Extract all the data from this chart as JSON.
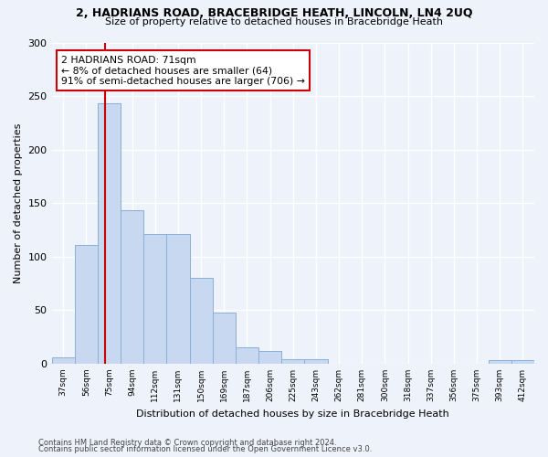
{
  "title1": "2, HADRIANS ROAD, BRACEBRIDGE HEATH, LINCOLN, LN4 2UQ",
  "title2": "Size of property relative to detached houses in Bracebridge Heath",
  "xlabel": "Distribution of detached houses by size in Bracebridge Heath",
  "ylabel": "Number of detached properties",
  "categories": [
    "37sqm",
    "56sqm",
    "75sqm",
    "94sqm",
    "112sqm",
    "131sqm",
    "150sqm",
    "169sqm",
    "187sqm",
    "206sqm",
    "225sqm",
    "243sqm",
    "262sqm",
    "281sqm",
    "300sqm",
    "318sqm",
    "337sqm",
    "356sqm",
    "375sqm",
    "393sqm",
    "412sqm"
  ],
  "values": [
    6,
    111,
    243,
    143,
    121,
    121,
    80,
    48,
    15,
    12,
    4,
    4,
    0,
    0,
    0,
    0,
    0,
    0,
    0,
    3,
    3
  ],
  "bar_color": "#c8d8f0",
  "bar_edge_color": "#8ab0d8",
  "vline_x_idx": 1.83,
  "annotation_line1": "2 HADRIANS ROAD: 71sqm",
  "annotation_line2": "← 8% of detached houses are smaller (64)",
  "annotation_line3": "91% of semi-detached houses are larger (706) →",
  "vline_color": "#cc0000",
  "annotation_box_edge": "#cc0000",
  "footer1": "Contains HM Land Registry data © Crown copyright and database right 2024.",
  "footer2": "Contains public sector information licensed under the Open Government Licence v3.0.",
  "ylim": [
    0,
    300
  ],
  "yticks": [
    0,
    50,
    100,
    150,
    200,
    250,
    300
  ],
  "bg_color": "#edf2fb",
  "grid_color": "#ffffff"
}
